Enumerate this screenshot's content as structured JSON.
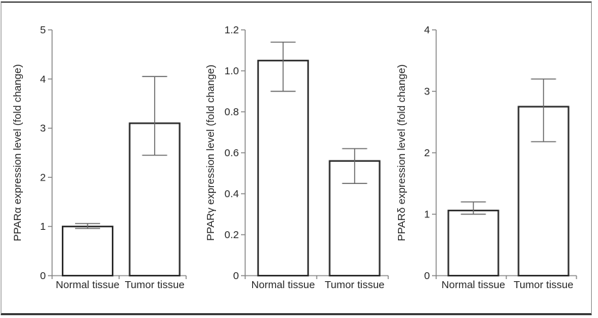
{
  "figure": {
    "background": "#ffffff",
    "frame_border_color": "#4a4a4a"
  },
  "style": {
    "bar_fill": "#ffffff",
    "bar_stroke": "#262626",
    "error_color": "#666666",
    "axis_color": "#808080",
    "text_color": "#262626"
  },
  "chart_data": [
    {
      "type": "bar",
      "id": "ppar-alpha",
      "title": "",
      "xlabel": "",
      "ylabel": "PPARα expression level (fold change)",
      "categories": [
        "Normal tissue",
        "Tumor tissue"
      ],
      "values": [
        1.0,
        3.1
      ],
      "errors": {
        "low": [
          0.96,
          2.45
        ],
        "high": [
          1.06,
          4.05
        ]
      },
      "ylim": [
        0,
        5
      ],
      "yticks": [
        0,
        1,
        2,
        3,
        4,
        5
      ],
      "ytick_labels": [
        "0",
        "1",
        "2",
        "3",
        "4",
        "5"
      ],
      "grid": false,
      "legend": false
    },
    {
      "type": "bar",
      "id": "ppar-gamma",
      "title": "",
      "xlabel": "",
      "ylabel": "PPARγ expression level (fold change)",
      "categories": [
        "Normal tissue",
        "Tumor tissue"
      ],
      "values": [
        1.05,
        0.56
      ],
      "errors": {
        "low": [
          0.9,
          0.45
        ],
        "high": [
          1.14,
          0.62
        ]
      },
      "ylim": [
        0,
        1.2
      ],
      "yticks": [
        0,
        0.2,
        0.4,
        0.6,
        0.8,
        1.0,
        1.2
      ],
      "ytick_labels": [
        "0",
        "0.2",
        "0.4",
        "0.6",
        "0.8",
        "1.0",
        "1.2"
      ],
      "grid": false,
      "legend": false
    },
    {
      "type": "bar",
      "id": "ppar-delta",
      "title": "",
      "xlabel": "",
      "ylabel": "PPARδ expression level (fold change)",
      "categories": [
        "Normal tissue",
        "Tumor tissue"
      ],
      "values": [
        1.06,
        2.75
      ],
      "errors": {
        "low": [
          1.0,
          2.18
        ],
        "high": [
          1.2,
          3.2
        ]
      },
      "ylim": [
        0,
        4
      ],
      "yticks": [
        0,
        1,
        2,
        3,
        4
      ],
      "ytick_labels": [
        "0",
        "1",
        "2",
        "3",
        "4"
      ],
      "grid": false,
      "legend": false
    }
  ]
}
